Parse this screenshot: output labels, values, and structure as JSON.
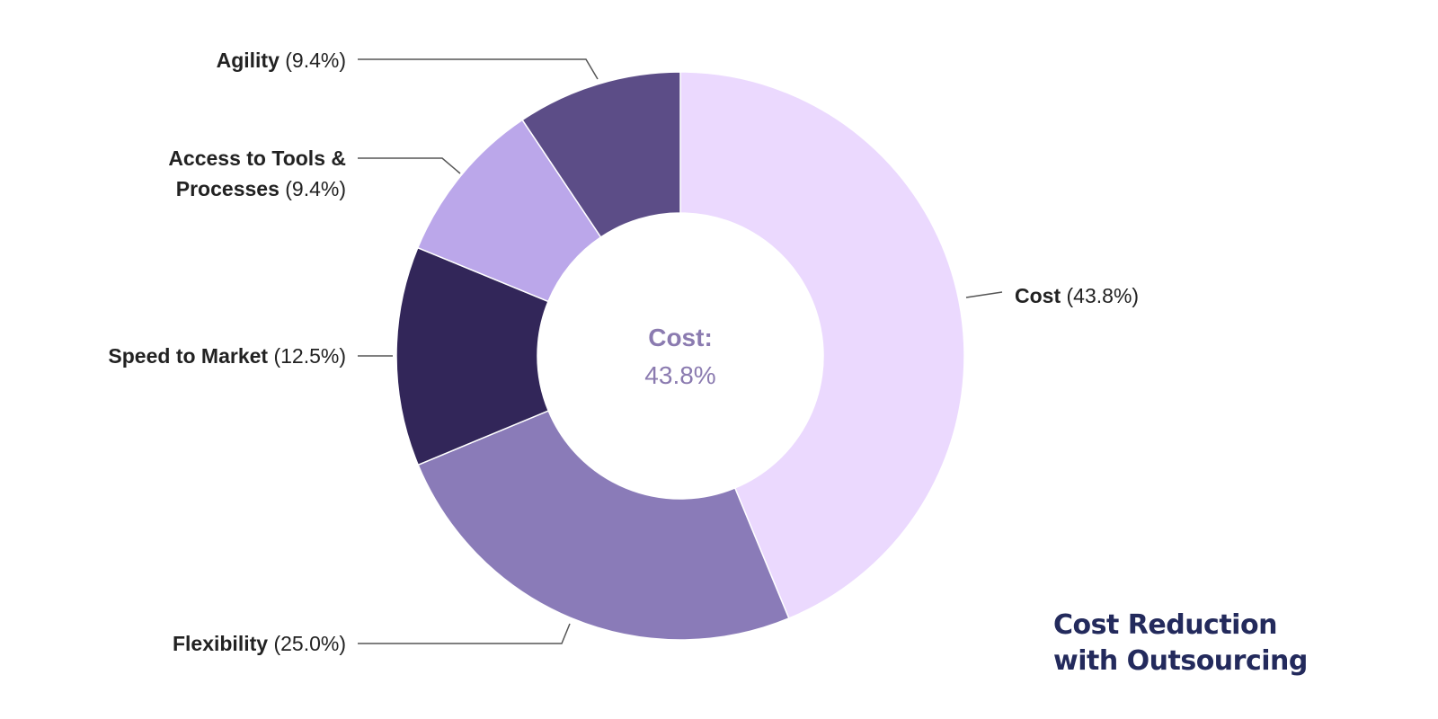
{
  "chart_data": {
    "type": "pie",
    "variant": "donut",
    "title": "Cost Reduction with Outsourcing",
    "title_lines": [
      "Cost Reduction",
      "with Outsourcing"
    ],
    "slices": [
      {
        "label": "Cost",
        "value": 43.8,
        "pct_text": "(43.8%)",
        "color": "#ebd9fe"
      },
      {
        "label": "Flexibility",
        "value": 25.0,
        "pct_text": "(25.0%)",
        "color": "#8a7bb8"
      },
      {
        "label": "Speed to Market",
        "value": 12.5,
        "pct_text": "(12.5%)",
        "color": "#322659"
      },
      {
        "label": "Access to Tools & Processes",
        "label_lines": [
          "Access to Tools &",
          "Processes"
        ],
        "value": 9.4,
        "pct_text": "(9.4%)",
        "color": "#bba7ea"
      },
      {
        "label": "Agility",
        "value": 9.4,
        "pct_text": "(9.4%)",
        "color": "#5c4d87"
      }
    ],
    "center_label": {
      "name": "Cost:",
      "value": "43.8%"
    },
    "legend": "none"
  }
}
